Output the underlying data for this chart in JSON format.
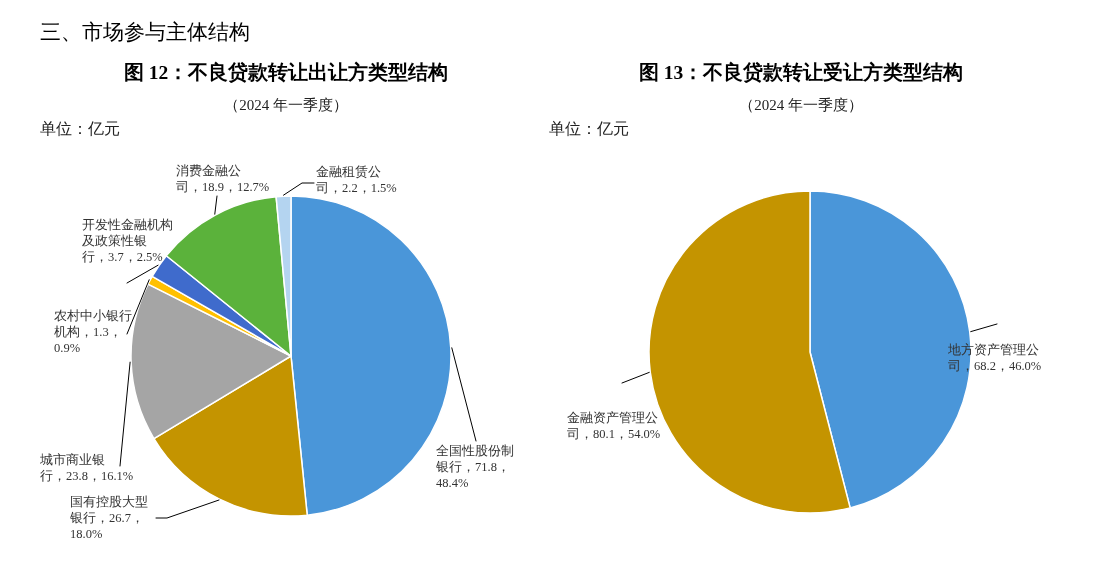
{
  "chart_data": [
    {
      "type": "pie",
      "title": "图 12：不良贷款转让出让方类型结构",
      "subtitle": "（2024 年一季度）",
      "annotations": [
        "三、市场参与主体结构",
        "单位：亿元"
      ],
      "categories": [
        "全国性股份制银行",
        "国有控股大型银行",
        "城市商业银行",
        "农村中小银行机构",
        "开发性金融机构及政策性银行",
        "消费金融公司",
        "金融租赁公司"
      ],
      "values": [
        71.8,
        26.7,
        23.8,
        1.3,
        3.7,
        18.9,
        2.2
      ],
      "value_labels": [
        "71.8，48.4%",
        "26.7，18.0%",
        "23.8，16.1%",
        "1.3，0.9%",
        "3.7，2.5%",
        "18.9，12.7%",
        "2.2，1.5%"
      ],
      "colors": [
        "#4a96d9",
        "#c49400",
        "#a5a5a5",
        "#ffc000",
        "#3f6bcc",
        "#5bb23b",
        "#b4d4f0"
      ]
    },
    {
      "type": "pie",
      "title": "图 13：不良贷款转让受让方类型结构",
      "subtitle": "（2024 年一季度）",
      "annotations": [
        "单位：亿元"
      ],
      "categories": [
        "地方资产管理公司",
        "金融资产管理公司"
      ],
      "values": [
        68.2,
        80.1
      ],
      "value_labels": [
        "68.2，46.0%",
        "80.1，54.0%"
      ],
      "colors": [
        "#4a96d9",
        "#c49400"
      ]
    }
  ]
}
